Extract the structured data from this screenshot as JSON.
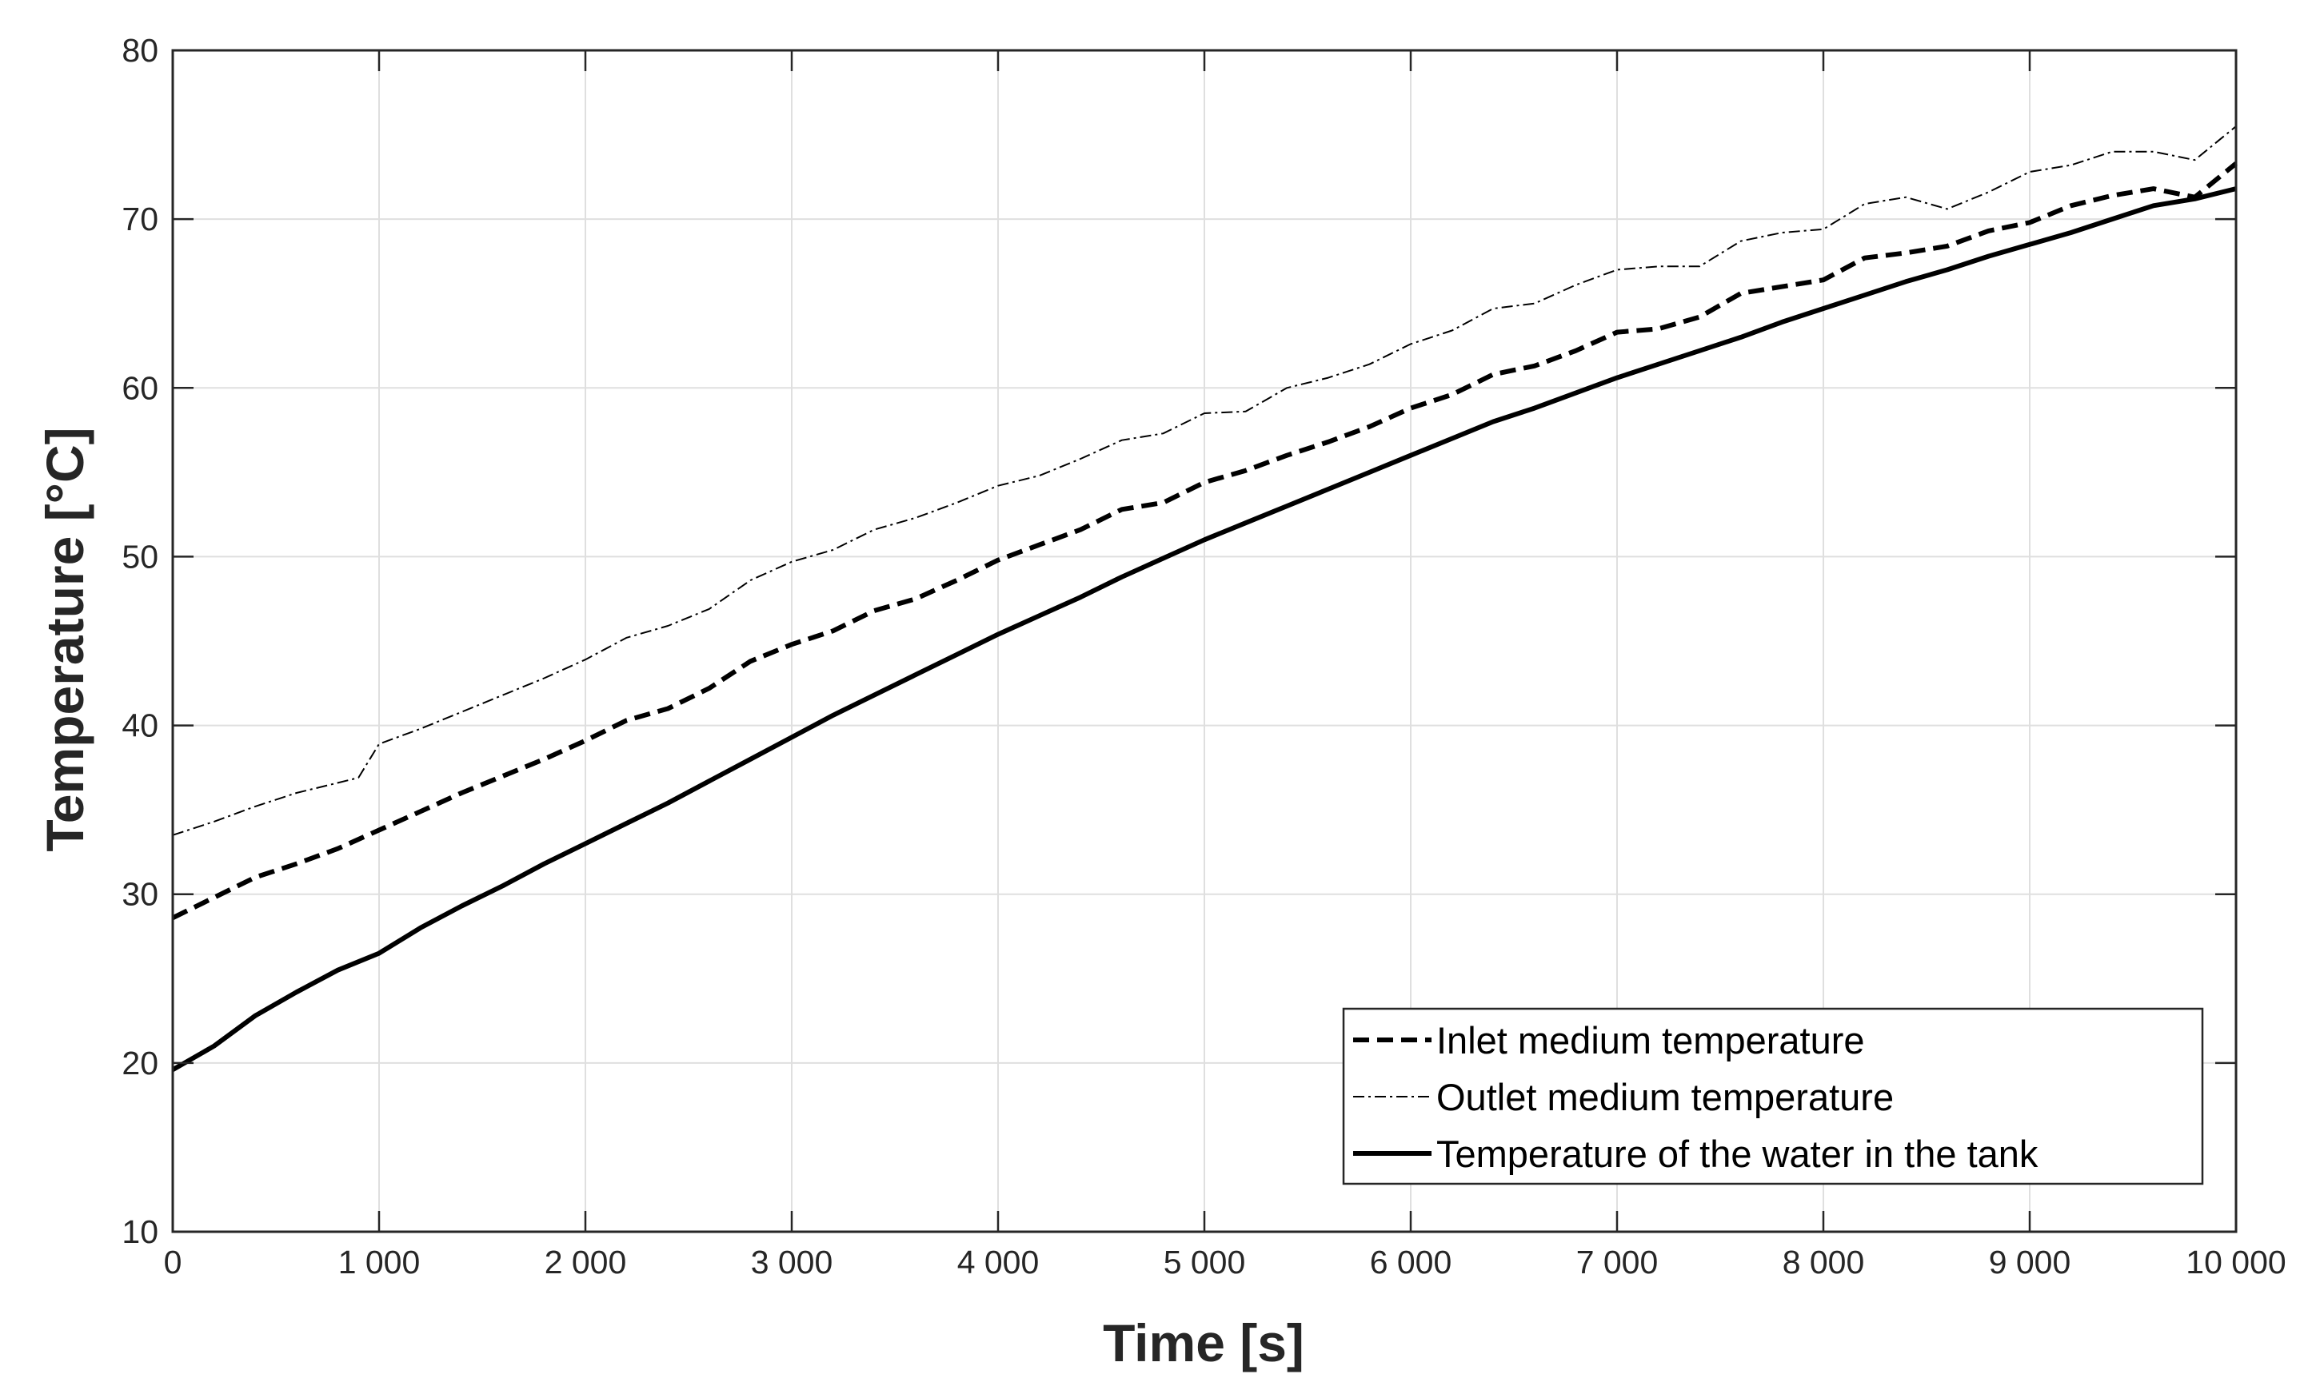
{
  "chart_data": {
    "type": "line",
    "title": "",
    "xlabel": "Time [s]",
    "ylabel": "Temperature [°C]",
    "xlim": [
      0,
      10000
    ],
    "ylim": [
      10,
      80
    ],
    "grid": true,
    "legend_position": "bottom-right",
    "x_ticks": [
      0,
      1000,
      2000,
      3000,
      4000,
      5000,
      6000,
      7000,
      8000,
      9000,
      10000
    ],
    "x_tick_labels": [
      "0",
      "1 000",
      "2 000",
      "3 000",
      "4 000",
      "5 000",
      "6 000",
      "7 000",
      "8 000",
      "9 000",
      "10 000"
    ],
    "y_ticks": [
      10,
      20,
      30,
      40,
      50,
      60,
      70,
      80
    ],
    "y_tick_labels": [
      "10",
      "20",
      "30",
      "40",
      "50",
      "60",
      "70",
      "80"
    ],
    "series": [
      {
        "name": "Inlet medium temperature",
        "style": "dashed",
        "color": "#000000",
        "x": [
          0,
          200,
          400,
          600,
          800,
          1000,
          1200,
          1400,
          1600,
          1800,
          2000,
          2200,
          2400,
          2600,
          2800,
          3000,
          3200,
          3400,
          3600,
          3800,
          4000,
          4200,
          4400,
          4600,
          4800,
          5000,
          5200,
          5400,
          5600,
          5800,
          6000,
          6200,
          6400,
          6600,
          6800,
          7000,
          7200,
          7400,
          7600,
          7800,
          8000,
          8200,
          8400,
          8600,
          8800,
          9000,
          9200,
          9400,
          9600,
          9800,
          10000
        ],
        "y": [
          28.6,
          29.8,
          31.0,
          31.8,
          32.7,
          33.8,
          34.9,
          36.0,
          37.0,
          38.0,
          39.1,
          40.3,
          41.0,
          42.2,
          43.8,
          44.8,
          45.6,
          46.8,
          47.5,
          48.6,
          49.8,
          50.7,
          51.6,
          52.8,
          53.2,
          54.4,
          55.1,
          56.0,
          56.8,
          57.7,
          58.8,
          59.6,
          60.8,
          61.3,
          62.2,
          63.3,
          63.5,
          64.2,
          65.6,
          66.0,
          66.4,
          67.7,
          68.0,
          68.4,
          69.3,
          69.8,
          70.8,
          71.4,
          71.8,
          71.3,
          73.3
        ]
      },
      {
        "name": "Outlet medium temperature",
        "style": "dashdot",
        "color": "#000000",
        "x": [
          0,
          200,
          400,
          600,
          800,
          900,
          1000,
          1200,
          1400,
          1600,
          1800,
          2000,
          2200,
          2400,
          2600,
          2800,
          3000,
          3200,
          3400,
          3600,
          3800,
          4000,
          4200,
          4400,
          4600,
          4800,
          5000,
          5200,
          5400,
          5600,
          5800,
          6000,
          6200,
          6400,
          6600,
          6800,
          7000,
          7200,
          7400,
          7600,
          7800,
          8000,
          8200,
          8400,
          8600,
          8800,
          9000,
          9200,
          9400,
          9600,
          9800,
          10000
        ],
        "y": [
          33.5,
          34.3,
          35.2,
          36.0,
          36.6,
          36.9,
          38.9,
          39.8,
          40.8,
          41.8,
          42.8,
          43.9,
          45.2,
          45.9,
          46.9,
          48.6,
          49.7,
          50.4,
          51.6,
          52.3,
          53.2,
          54.2,
          54.8,
          55.8,
          56.9,
          57.3,
          58.5,
          58.6,
          60.0,
          60.6,
          61.4,
          62.6,
          63.4,
          64.7,
          65.0,
          66.1,
          67.0,
          67.2,
          67.2,
          68.7,
          69.2,
          69.4,
          70.9,
          71.3,
          70.6,
          71.6,
          72.8,
          73.2,
          74.0,
          74.0,
          73.5,
          75.5
        ]
      },
      {
        "name": "Temperature of the water in the tank",
        "style": "solid",
        "color": "#000000",
        "x": [
          0,
          200,
          400,
          600,
          800,
          1000,
          1200,
          1400,
          1600,
          1800,
          2000,
          2200,
          2400,
          2600,
          2800,
          3000,
          3200,
          3400,
          3600,
          3800,
          4000,
          4200,
          4400,
          4600,
          4800,
          5000,
          5200,
          5400,
          5600,
          5800,
          6000,
          6200,
          6400,
          6600,
          6800,
          7000,
          7200,
          7400,
          7600,
          7800,
          8000,
          8200,
          8400,
          8600,
          8800,
          9000,
          9200,
          9400,
          9600,
          9800,
          10000
        ],
        "y": [
          19.6,
          21.0,
          22.8,
          24.2,
          25.5,
          26.5,
          28.0,
          29.3,
          30.5,
          31.8,
          33.0,
          34.2,
          35.4,
          36.7,
          38.0,
          39.3,
          40.6,
          41.8,
          43.0,
          44.2,
          45.4,
          46.5,
          47.6,
          48.8,
          49.9,
          51.0,
          52.0,
          53.0,
          54.0,
          55.0,
          56.0,
          57.0,
          58.0,
          58.8,
          59.7,
          60.6,
          61.4,
          62.2,
          63.0,
          63.9,
          64.7,
          65.5,
          66.3,
          67.0,
          67.8,
          68.5,
          69.2,
          70.0,
          70.8,
          71.2,
          71.8
        ]
      }
    ]
  }
}
